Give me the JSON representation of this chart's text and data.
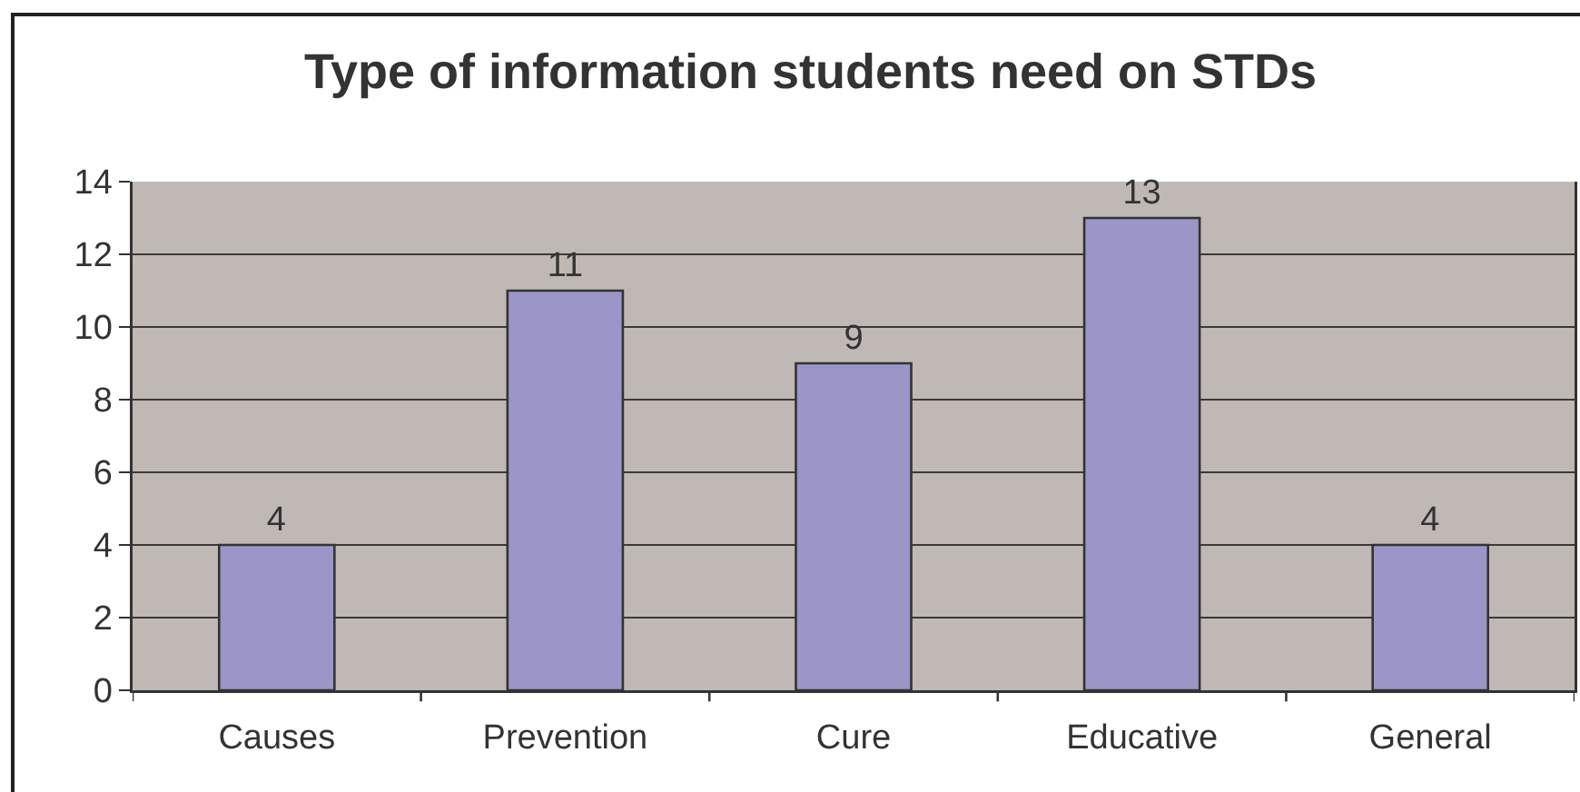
{
  "chart_data": {
    "type": "bar",
    "title": "Type of information students need on STDs",
    "categories": [
      "Causes",
      "Prevention",
      "Cure",
      "Educative",
      "General"
    ],
    "values": [
      4,
      11,
      9,
      13,
      4
    ],
    "color": "#9b96c8",
    "ylim": [
      0,
      14
    ],
    "yticks": [
      0,
      2,
      4,
      6,
      8,
      10,
      12,
      14
    ],
    "grid": "y",
    "data_labels": true
  }
}
